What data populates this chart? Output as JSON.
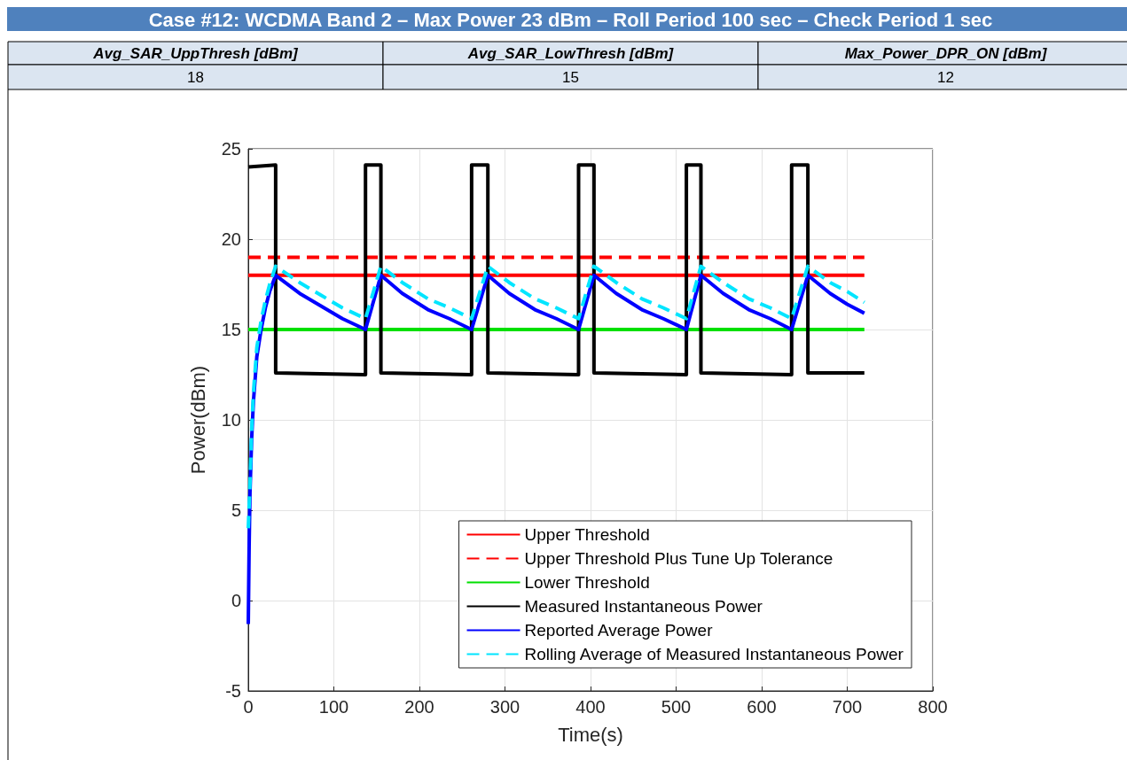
{
  "chart_data": {
    "type": "line",
    "title": "Case #12: WCDMA Band 2 – Max Power 23 dBm – Roll Period 100 sec – Check Period 1 sec",
    "annotations": [
      "Avg_SAR_UppThresh [dBm]",
      "Avg_SAR_LowThresh [dBm]",
      "Max_Power_DPR_ON [dBm]",
      "18",
      "15",
      "12"
    ],
    "xlabel": "Time(s)",
    "ylabel": "Power(dBm)",
    "xlim": [
      0,
      800
    ],
    "xticks": [
      0,
      100,
      200,
      300,
      400,
      500,
      600,
      700,
      800
    ],
    "ylim": [
      -5,
      25
    ],
    "yticks": [
      -5,
      0,
      5,
      10,
      15,
      20,
      25
    ],
    "grid": true,
    "legend": "bottom right",
    "marker": "none",
    "series": [
      {
        "name": "Upper Threshold",
        "color": "#ff0000",
        "line_style": "solid",
        "x": [
          0,
          720
        ],
        "values": [
          18,
          18
        ]
      },
      {
        "name": "Upper Threshold Plus Tune Up Tolerance",
        "color": "#ff0000",
        "line_style": "dashed",
        "x": [
          0,
          720
        ],
        "values": [
          19,
          19
        ]
      },
      {
        "name": "Lower Threshold",
        "color": "#00e000",
        "line_style": "solid",
        "x": [
          0,
          720
        ],
        "values": [
          15,
          15
        ]
      },
      {
        "name": "Measured Instantaneous Power",
        "color": "#000000",
        "line_style": "solid",
        "x": [
          0,
          32,
          32,
          137,
          137,
          155,
          155,
          261,
          261,
          280,
          280,
          386,
          386,
          404,
          404,
          512,
          512,
          529,
          529,
          635,
          635,
          654,
          654,
          720
        ],
        "values": [
          24,
          24.1,
          12.6,
          12.5,
          24.1,
          24.1,
          12.6,
          12.5,
          24.1,
          24.1,
          12.6,
          12.5,
          24.1,
          24.1,
          12.6,
          12.5,
          24.1,
          24.1,
          12.6,
          12.5,
          24.1,
          24.1,
          12.6,
          12.6
        ]
      },
      {
        "name": "Reported Average Power",
        "color": "#0000ff",
        "line_style": "solid",
        "x": [
          0,
          1,
          2,
          4,
          6,
          10,
          15,
          20,
          25,
          32,
          60,
          85,
          110,
          137,
          155,
          180,
          210,
          235,
          261,
          280,
          305,
          335,
          360,
          386,
          404,
          430,
          460,
          485,
          512,
          529,
          555,
          585,
          610,
          635,
          654,
          680,
          700,
          720
        ],
        "values": [
          -1.3,
          3,
          6,
          9,
          11,
          13.5,
          15,
          16.2,
          17.1,
          18,
          17,
          16.3,
          15.6,
          15,
          18,
          17,
          16.1,
          15.6,
          15,
          18,
          17,
          16.1,
          15.6,
          15,
          18,
          17,
          16.1,
          15.6,
          15,
          18,
          17,
          16.1,
          15.6,
          15,
          18,
          17,
          16.4,
          15.9
        ]
      },
      {
        "name": "Rolling Average of Measured Instantaneous Power",
        "color": "#00e5ff",
        "line_style": "dashed",
        "x": [
          0,
          2,
          4,
          6,
          10,
          15,
          20,
          25,
          32,
          60,
          85,
          110,
          137,
          155,
          180,
          210,
          235,
          261,
          280,
          305,
          335,
          360,
          386,
          404,
          430,
          460,
          485,
          512,
          529,
          555,
          585,
          610,
          635,
          654,
          680,
          700,
          720
        ],
        "values": [
          4,
          6.5,
          9.5,
          11.5,
          14,
          15.5,
          16.6,
          17.5,
          18.5,
          17.6,
          16.9,
          16.2,
          15.6,
          18.5,
          17.6,
          16.7,
          16.2,
          15.6,
          18.5,
          17.6,
          16.7,
          16.2,
          15.6,
          18.5,
          17.6,
          16.7,
          16.2,
          15.6,
          18.5,
          17.6,
          16.7,
          16.2,
          15.6,
          18.5,
          17.6,
          17.1,
          16.5
        ]
      }
    ]
  }
}
